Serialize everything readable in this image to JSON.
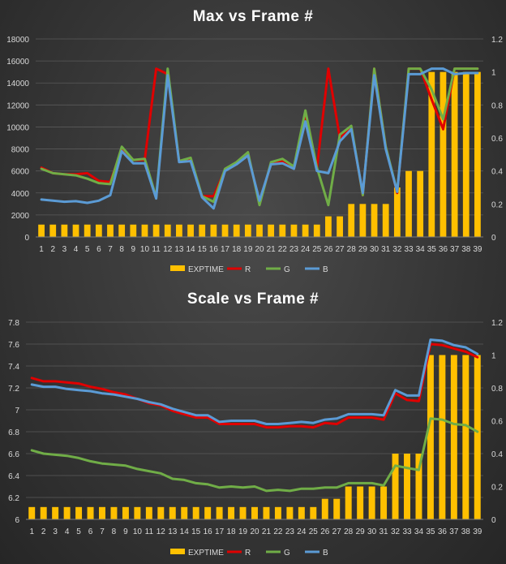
{
  "chart_data": [
    {
      "type": "bar",
      "title": "Max vs Frame #",
      "xlabel": "",
      "ylabel": "",
      "categories": [
        "1",
        "2",
        "3",
        "4",
        "5",
        "6",
        "7",
        "8",
        "9",
        "10",
        "11",
        "12",
        "13",
        "14",
        "15",
        "16",
        "17",
        "18",
        "19",
        "20",
        "21",
        "22",
        "23",
        "24",
        "25",
        "26",
        "27",
        "28",
        "29",
        "30",
        "31",
        "32",
        "33",
        "34",
        "35",
        "36",
        "37",
        "38",
        "39"
      ],
      "ylim": [
        0,
        18000
      ],
      "yticks": [
        0,
        2000,
        4000,
        6000,
        8000,
        10000,
        12000,
        14000,
        16000,
        18000
      ],
      "y2lim": [
        0,
        1.2
      ],
      "y2ticks": [
        0,
        0.2,
        0.4,
        0.6,
        0.8,
        1,
        1.2
      ],
      "grid": true,
      "legend_position": "bottom",
      "series": [
        {
          "name": "EXPTIME",
          "kind": "bar",
          "axis": "right",
          "color": "#FFC000",
          "values": [
            0.075,
            0.075,
            0.075,
            0.075,
            0.075,
            0.075,
            0.075,
            0.075,
            0.075,
            0.075,
            0.075,
            0.075,
            0.075,
            0.075,
            0.075,
            0.075,
            0.075,
            0.075,
            0.075,
            0.075,
            0.075,
            0.075,
            0.075,
            0.075,
            0.075,
            0.125,
            0.125,
            0.2,
            0.2,
            0.2,
            0.2,
            0.3,
            0.4,
            0.4,
            1,
            1,
            1,
            1,
            1
          ]
        },
        {
          "name": "R",
          "kind": "line",
          "axis": "left",
          "color": "#E00000",
          "values": [
            6300,
            5800,
            5700,
            5700,
            5800,
            5100,
            5000,
            8000,
            7000,
            7000,
            15300,
            14800,
            6900,
            7100,
            3700,
            3700,
            6100,
            6700,
            7600,
            3000,
            6700,
            6900,
            6300,
            11300,
            6200,
            15300,
            9000,
            10000,
            3800,
            15300,
            8200,
            4000,
            15300,
            15300,
            12500,
            9800,
            15300,
            15300,
            15300
          ]
        },
        {
          "name": "G",
          "kind": "line",
          "axis": "left",
          "color": "#70AD47",
          "values": [
            6200,
            5800,
            5700,
            5600,
            5300,
            4900,
            4800,
            8200,
            7000,
            7100,
            3600,
            15300,
            6900,
            7200,
            3700,
            3200,
            6200,
            6800,
            7700,
            2900,
            6800,
            7100,
            6400,
            11500,
            6300,
            2900,
            9300,
            10100,
            3800,
            15300,
            8200,
            4100,
            15300,
            15300,
            13400,
            10700,
            15300,
            15300,
            15300
          ]
        },
        {
          "name": "B",
          "kind": "line",
          "axis": "left",
          "color": "#5B9BD5",
          "values": [
            3400,
            3300,
            3200,
            3250,
            3100,
            3300,
            3800,
            7800,
            6700,
            6700,
            3500,
            14700,
            6800,
            6900,
            3600,
            2600,
            6000,
            6600,
            7400,
            3300,
            6600,
            6700,
            6200,
            10500,
            6000,
            5800,
            8700,
            9800,
            4000,
            14700,
            8000,
            4100,
            14800,
            14800,
            15300,
            15300,
            14800,
            14900,
            14900
          ]
        }
      ]
    },
    {
      "type": "bar",
      "title": "Scale vs Frame #",
      "xlabel": "",
      "ylabel": "",
      "categories": [
        "1",
        "2",
        "3",
        "4",
        "5",
        "6",
        "7",
        "8",
        "9",
        "10",
        "11",
        "12",
        "13",
        "14",
        "15",
        "16",
        "17",
        "18",
        "19",
        "20",
        "21",
        "22",
        "23",
        "24",
        "25",
        "26",
        "27",
        "28",
        "29",
        "30",
        "31",
        "32",
        "33",
        "34",
        "35",
        "36",
        "37",
        "38",
        "39"
      ],
      "ylim": [
        6,
        7.8
      ],
      "yticks": [
        6,
        6.2,
        6.4,
        6.6,
        6.8,
        7,
        7.2,
        7.4,
        7.6,
        7.8
      ],
      "y2lim": [
        0,
        1.2
      ],
      "y2ticks": [
        0,
        0.2,
        0.4,
        0.6,
        0.8,
        1,
        1.2
      ],
      "grid": true,
      "legend_position": "bottom",
      "series": [
        {
          "name": "EXPTIME",
          "kind": "bar",
          "axis": "right",
          "color": "#FFC000",
          "values": [
            0.075,
            0.075,
            0.075,
            0.075,
            0.075,
            0.075,
            0.075,
            0.075,
            0.075,
            0.075,
            0.075,
            0.075,
            0.075,
            0.075,
            0.075,
            0.075,
            0.075,
            0.075,
            0.075,
            0.075,
            0.075,
            0.075,
            0.075,
            0.075,
            0.075,
            0.125,
            0.125,
            0.2,
            0.2,
            0.2,
            0.2,
            0.4,
            0.4,
            0.4,
            1,
            1,
            1,
            1,
            1
          ]
        },
        {
          "name": "R",
          "kind": "line",
          "axis": "left",
          "color": "#E00000",
          "values": [
            7.29,
            7.26,
            7.26,
            7.25,
            7.24,
            7.21,
            7.19,
            7.16,
            7.14,
            7.1,
            7.06,
            7.04,
            6.99,
            6.96,
            6.93,
            6.93,
            6.87,
            6.87,
            6.87,
            6.87,
            6.84,
            6.84,
            6.85,
            6.85,
            6.84,
            6.88,
            6.87,
            6.93,
            6.93,
            6.93,
            6.91,
            7.15,
            7.09,
            7.08,
            7.6,
            7.59,
            7.56,
            7.53,
            7.48
          ]
        },
        {
          "name": "G",
          "kind": "line",
          "axis": "left",
          "color": "#70AD47",
          "values": [
            6.63,
            6.6,
            6.59,
            6.58,
            6.56,
            6.53,
            6.51,
            6.5,
            6.49,
            6.46,
            6.44,
            6.42,
            6.37,
            6.36,
            6.33,
            6.32,
            6.29,
            6.3,
            6.29,
            6.3,
            6.26,
            6.27,
            6.26,
            6.28,
            6.28,
            6.29,
            6.29,
            6.33,
            6.33,
            6.33,
            6.31,
            6.49,
            6.47,
            6.45,
            6.92,
            6.91,
            6.87,
            6.86,
            6.8
          ]
        },
        {
          "name": "B",
          "kind": "line",
          "axis": "left",
          "color": "#5B9BD5",
          "values": [
            7.23,
            7.21,
            7.21,
            7.19,
            7.18,
            7.17,
            7.15,
            7.14,
            7.12,
            7.1,
            7.07,
            7.05,
            7.01,
            6.98,
            6.95,
            6.95,
            6.89,
            6.9,
            6.9,
            6.9,
            6.87,
            6.87,
            6.88,
            6.89,
            6.88,
            6.91,
            6.92,
            6.96,
            6.96,
            6.96,
            6.95,
            7.18,
            7.13,
            7.13,
            7.64,
            7.63,
            7.59,
            7.57,
            7.51
          ]
        }
      ]
    }
  ]
}
